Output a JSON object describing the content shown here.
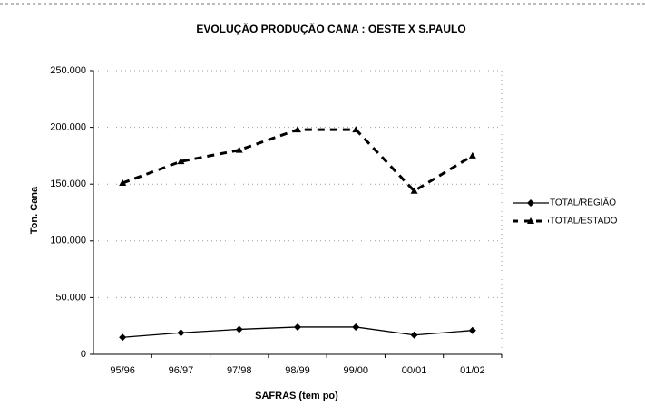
{
  "chart_data": {
    "type": "line",
    "title": "EVOLUÇÃO PRODUÇÃO CANA : OESTE X S.PAULO",
    "xlabel": "SAFRAS (tem po)",
    "ylabel": "Ton. Cana",
    "categories": [
      "95/96",
      "96/97",
      "97/98",
      "98/99",
      "99/00",
      "00/01",
      "01/02"
    ],
    "series": [
      {
        "name": "TOTAL/REGIÃO",
        "color": "#000000",
        "marker": "diamond",
        "dash": "solid",
        "values": [
          15000,
          19000,
          22000,
          24000,
          24000,
          17000,
          21000
        ]
      },
      {
        "name": "TOTAL/ESTADO",
        "color": "#000000",
        "marker": "triangle",
        "dash": "dashed",
        "values": [
          151000,
          170000,
          180000,
          198000,
          198000,
          144000,
          175000
        ]
      }
    ],
    "ylim": [
      0,
      250000
    ],
    "yticks": [
      0,
      {
        "value": 50000,
        "label": "50.000"
      },
      {
        "value": 100000,
        "label": "100.000"
      },
      {
        "value": 150000,
        "label": "150.000"
      },
      {
        "value": 200000,
        "label": "200.000"
      },
      {
        "value": 250000,
        "label": "250.000"
      }
    ],
    "grid": true,
    "legend": "right"
  }
}
